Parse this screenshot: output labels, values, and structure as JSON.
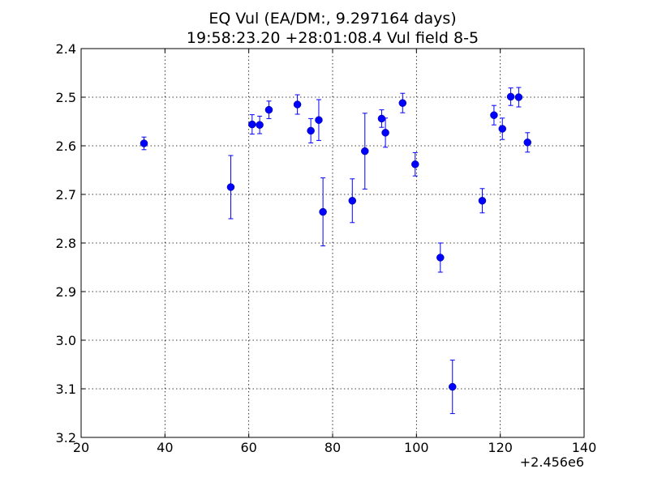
{
  "chart_data": {
    "type": "scatter",
    "title_line1": "EQ Vul (EA/DM:, 9.297164 days)",
    "title_line2": "19:58:23.20 +28:01:08.4 Vul field 8-5",
    "xlabel": "",
    "ylabel": "",
    "x_offset_label": "+2.456e6",
    "xlim": [
      20,
      140
    ],
    "ylim": [
      2.4,
      3.2
    ],
    "y_inverted": true,
    "grid": true,
    "x_ticks": [
      20,
      40,
      60,
      80,
      100,
      120,
      140
    ],
    "x_tick_labels": [
      "20",
      "40",
      "60",
      "80",
      "100",
      "120",
      "140"
    ],
    "y_ticks": [
      2.4,
      2.5,
      2.6,
      2.7,
      2.8,
      2.9,
      3.0,
      3.1,
      3.2
    ],
    "y_tick_labels": [
      "2.4",
      "2.5",
      "2.6",
      "2.7",
      "2.8",
      "2.9",
      "3.0",
      "3.1",
      "3.2"
    ],
    "color": "#0000ff",
    "points": [
      {
        "x": 35.0,
        "y": 2.595,
        "err": 0.013
      },
      {
        "x": 55.7,
        "y": 2.685,
        "err": 0.065
      },
      {
        "x": 60.8,
        "y": 2.556,
        "err": 0.02
      },
      {
        "x": 62.6,
        "y": 2.557,
        "err": 0.018
      },
      {
        "x": 64.8,
        "y": 2.526,
        "err": 0.018
      },
      {
        "x": 71.6,
        "y": 2.515,
        "err": 0.02
      },
      {
        "x": 74.8,
        "y": 2.569,
        "err": 0.025
      },
      {
        "x": 76.7,
        "y": 2.547,
        "err": 0.042
      },
      {
        "x": 77.7,
        "y": 2.736,
        "err": 0.07
      },
      {
        "x": 84.7,
        "y": 2.713,
        "err": 0.045
      },
      {
        "x": 87.7,
        "y": 2.611,
        "err": 0.078
      },
      {
        "x": 91.7,
        "y": 2.544,
        "err": 0.018
      },
      {
        "x": 92.6,
        "y": 2.573,
        "err": 0.03
      },
      {
        "x": 96.7,
        "y": 2.512,
        "err": 0.02
      },
      {
        "x": 99.7,
        "y": 2.638,
        "err": 0.024
      },
      {
        "x": 105.7,
        "y": 2.83,
        "err": 0.03
      },
      {
        "x": 108.6,
        "y": 3.096,
        "err": 0.055
      },
      {
        "x": 115.7,
        "y": 2.713,
        "err": 0.025
      },
      {
        "x": 118.5,
        "y": 2.537,
        "err": 0.02
      },
      {
        "x": 120.5,
        "y": 2.565,
        "err": 0.022
      },
      {
        "x": 122.5,
        "y": 2.499,
        "err": 0.018
      },
      {
        "x": 124.4,
        "y": 2.5,
        "err": 0.02
      },
      {
        "x": 126.5,
        "y": 2.593,
        "err": 0.02
      }
    ]
  }
}
